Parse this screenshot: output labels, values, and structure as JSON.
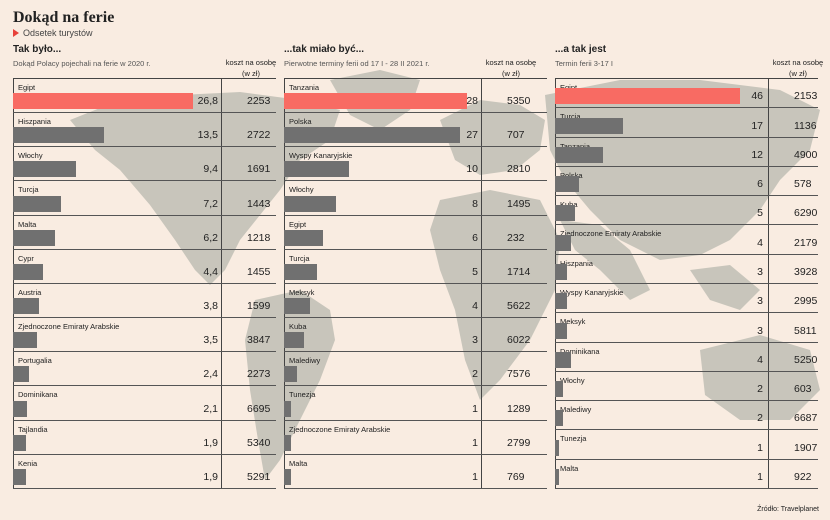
{
  "header": {
    "title": "Dokąd na ferie",
    "subtitle": "Odsetek turystów"
  },
  "source": "Źródło: Travelplanet",
  "colors": {
    "highlight": "#f86b63",
    "bar": "#707070",
    "map": "#c8c5bb",
    "background": "#f9ece1"
  },
  "panels": [
    {
      "title": "Tak było...",
      "subtitle": "Dokąd Polacy pojechali na ferie w 2020 r.",
      "cost_header": [
        "koszt na osobę",
        "(w zł)"
      ]
    },
    {
      "title": "...tak miało być...",
      "subtitle": "Pierwotne terminy ferii od 17 I - 28 II 2021 r.",
      "cost_header": [
        "koszt na osobę",
        "(w zł)"
      ]
    },
    {
      "title": "...a tak jest",
      "subtitle": "Termin ferii 3-17 I",
      "cost_header": [
        "koszt na osobę",
        "(w zł)"
      ]
    }
  ],
  "chart_data": [
    {
      "type": "bar",
      "title": "Tak było...",
      "categories": [
        "Egipt",
        "Hiszpania",
        "Włochy",
        "Turcja",
        "Malta",
        "Cypr",
        "Austria",
        "Zjednoczone Emiraty Arabskie",
        "Portugalia",
        "Dominikana",
        "Tajlandia",
        "Kenia"
      ],
      "values": [
        26.8,
        13.5,
        9.4,
        7.2,
        6.2,
        4.4,
        3.8,
        3.5,
        2.4,
        2.1,
        1.9,
        1.9
      ],
      "value_labels": [
        "26,8",
        "13,5",
        "9,4",
        "7,2",
        "6,2",
        "4,4",
        "3,8",
        "3,5",
        "2,4",
        "2,1",
        "1,9",
        "1,9"
      ],
      "cost": [
        "2253",
        "2722",
        "1691",
        "1443",
        "1218",
        "1455",
        "1599",
        "3847",
        "2273",
        "6695",
        "5340",
        "5291"
      ],
      "highlight": 0
    },
    {
      "type": "bar",
      "title": "...tak miało być...",
      "categories": [
        "Tanzania",
        "Polska",
        "Wyspy Kanaryjskie",
        "Włochy",
        "Egipt",
        "Turcja",
        "Meksyk",
        "Kuba",
        "Malediwy",
        "Tunezja",
        "Zjednoczone Emiraty Arabskie",
        "Malta"
      ],
      "values": [
        28,
        27,
        10,
        8,
        6,
        5,
        4,
        3,
        2,
        1,
        1,
        1
      ],
      "value_labels": [
        "28",
        "27",
        "10",
        "8",
        "6",
        "5",
        "4",
        "3",
        "2",
        "1",
        "1",
        "1"
      ],
      "cost": [
        "5350",
        "707",
        "2810",
        "1495",
        "232",
        "1714",
        "5622",
        "6022",
        "7576",
        "1289",
        "2799",
        "769"
      ],
      "highlight": 0
    },
    {
      "type": "bar",
      "title": "...a tak jest",
      "categories": [
        "Egipt",
        "Turcja",
        "Tanzania",
        "Polska",
        "Kuba",
        "Zjednoczone Emiraty Arabskie",
        "Hiszpania",
        "Wyspy Kanaryjskie",
        "Meksyk",
        "Dominikana",
        "Włochy",
        "Malediwy",
        "Tunezja",
        "Malta"
      ],
      "values": [
        46,
        17,
        12,
        6,
        5,
        4,
        3,
        3,
        3,
        4,
        2,
        2,
        1,
        1
      ],
      "value_labels": [
        "46",
        "17",
        "12",
        "6",
        "5",
        "4",
        "3",
        "3",
        "3",
        "4",
        "2",
        "2",
        "1",
        "1"
      ],
      "cost": [
        "2153",
        "1136",
        "4900",
        "578",
        "6290",
        "2179",
        "3928",
        "2995",
        "5811",
        "5250",
        "603",
        "6687",
        "1907",
        "922"
      ],
      "highlight": 0
    }
  ]
}
